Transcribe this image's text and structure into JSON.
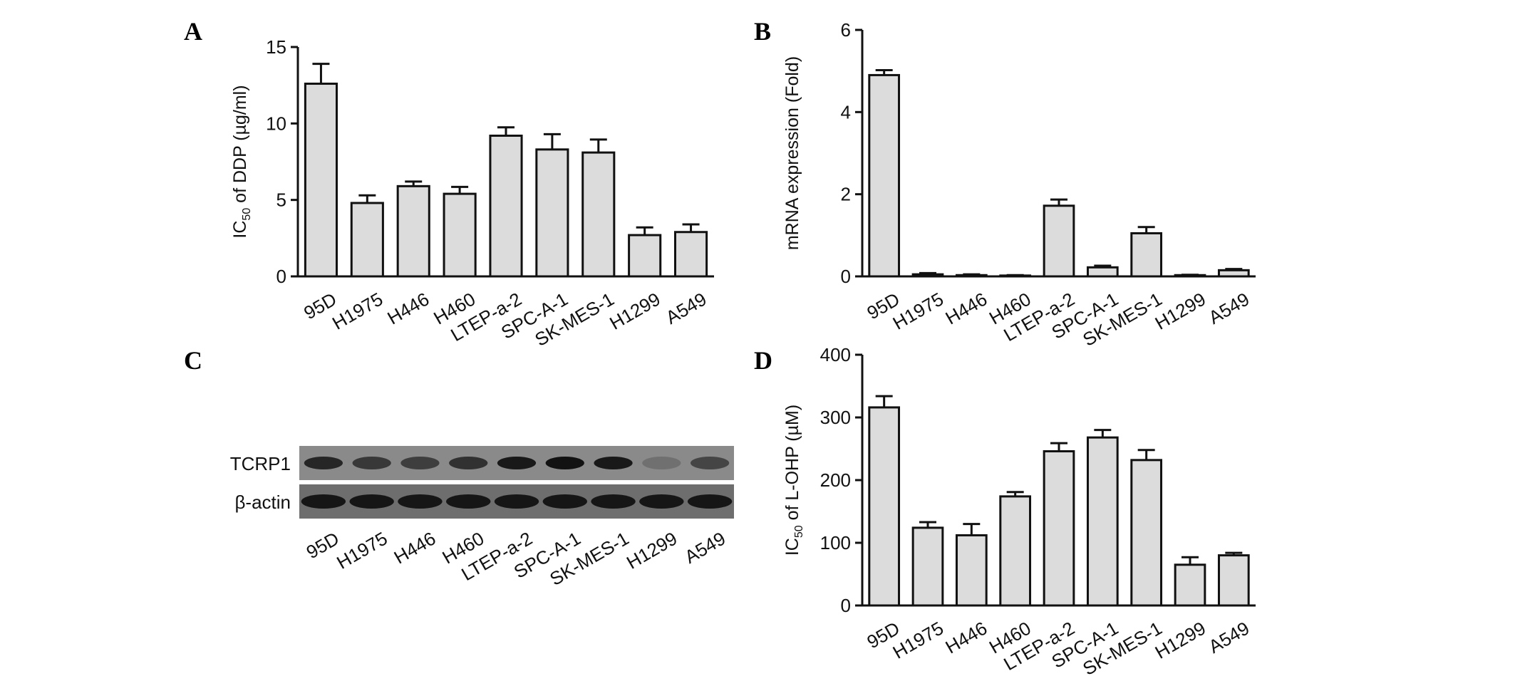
{
  "colors": {
    "bar_fill": "#dcdcdc",
    "stroke": "#111111",
    "blot_background": "#8a8a8a"
  },
  "panel_letters": [
    "A",
    "B",
    "C",
    "D"
  ],
  "chart_data": [
    {
      "panel": "A",
      "type": "bar",
      "categories": [
        "95D",
        "H1975",
        "H446",
        "H460",
        "LTEP-a-2",
        "SPC-A-1",
        "SK-MES-1",
        "H1299",
        "A549"
      ],
      "values": [
        12.6,
        4.8,
        5.9,
        5.4,
        9.2,
        8.3,
        8.1,
        2.7,
        2.9
      ],
      "errors": [
        1.3,
        0.5,
        0.3,
        0.45,
        0.55,
        1.0,
        0.85,
        0.5,
        0.5
      ],
      "ylabel_prefix": "IC",
      "ylabel_sub": "50",
      "ylabel_suffix": " of DDP (µg/ml)",
      "ylim": [
        0,
        15
      ],
      "yticks": [
        "0",
        "5",
        "10",
        "15"
      ],
      "grid": false,
      "legend": "none"
    },
    {
      "panel": "B",
      "type": "bar",
      "categories": [
        "95D",
        "H1975",
        "H446",
        "H460",
        "LTEP-a-2",
        "SPC-A-1",
        "SK-MES-1",
        "H1299",
        "A549"
      ],
      "values": [
        4.9,
        0.05,
        0.03,
        0.02,
        1.72,
        0.22,
        1.05,
        0.03,
        0.15
      ],
      "errors": [
        0.12,
        0.03,
        0.02,
        0.01,
        0.15,
        0.04,
        0.15,
        0.01,
        0.03
      ],
      "ylabel_prefix": "mRNA expression (Fold)",
      "ylabel_sub": "",
      "ylabel_suffix": "",
      "ylim": [
        0,
        6
      ],
      "yticks": [
        "0",
        "2",
        "4",
        "6"
      ],
      "grid": false,
      "legend": "none"
    },
    {
      "panel": "D",
      "type": "bar",
      "categories": [
        "95D",
        "H1975",
        "H446",
        "H460",
        "LTEP-a-2",
        "SPC-A-1",
        "SK-MES-1",
        "H1299",
        "A549"
      ],
      "values": [
        316,
        124,
        112,
        174,
        246,
        268,
        232,
        65,
        80
      ],
      "errors": [
        18,
        9,
        18,
        7,
        13,
        12,
        16,
        12,
        4
      ],
      "ylabel_prefix": "IC",
      "ylabel_sub": "50",
      "ylabel_suffix": " of L-OHP (µM)",
      "ylim": [
        0,
        400
      ],
      "yticks": [
        "0",
        "100",
        "200",
        "300",
        "400"
      ],
      "grid": false,
      "legend": "none"
    }
  ],
  "western_blot": {
    "panel": "C",
    "rows": [
      "TCRP1",
      "β-actin"
    ],
    "lanes": [
      "95D",
      "H1975",
      "H446",
      "H460",
      "LTEP-a-2",
      "SPC-A-1",
      "SK-MES-1",
      "H1299",
      "A549"
    ],
    "tcrp1_band_intensity": [
      0.8,
      0.65,
      0.6,
      0.7,
      0.9,
      0.95,
      0.9,
      0.2,
      0.55
    ],
    "actin_band_intensity": [
      0.9,
      0.9,
      0.9,
      0.9,
      0.9,
      0.9,
      0.9,
      0.9,
      0.9
    ]
  }
}
